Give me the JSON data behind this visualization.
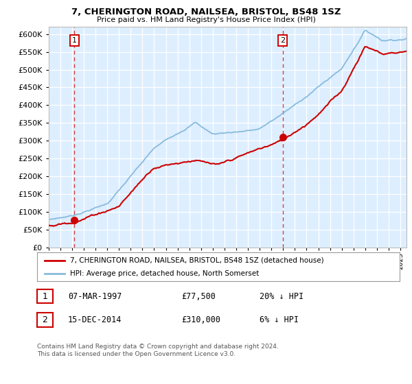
{
  "title": "7, CHERINGTON ROAD, NAILSEA, BRISTOL, BS48 1SZ",
  "subtitle": "Price paid vs. HM Land Registry's House Price Index (HPI)",
  "ylim": [
    0,
    620000
  ],
  "yticks": [
    0,
    50000,
    100000,
    150000,
    200000,
    250000,
    300000,
    350000,
    400000,
    450000,
    500000,
    550000,
    600000
  ],
  "sale1_date": 1997.19,
  "sale1_price": 77500,
  "sale1_label": "1",
  "sale2_date": 2014.96,
  "sale2_price": 310000,
  "sale2_label": "2",
  "legend_line1": "7, CHERINGTON ROAD, NAILSEA, BRISTOL, BS48 1SZ (detached house)",
  "legend_line2": "HPI: Average price, detached house, North Somerset",
  "table_row1": [
    "1",
    "07-MAR-1997",
    "£77,500",
    "20% ↓ HPI"
  ],
  "table_row2": [
    "2",
    "15-DEC-2014",
    "£310,000",
    "6% ↓ HPI"
  ],
  "footer": "Contains HM Land Registry data © Crown copyright and database right 2024.\nThis data is licensed under the Open Government Licence v3.0.",
  "sold_line_color": "#cc0000",
  "hpi_line_color": "#88bbdd",
  "background_color": "#ddeeff",
  "plot_bg_color": "#ddeeff",
  "marker_color": "#cc0000",
  "vline_color": "#cc0000",
  "grid_color": "#ffffff",
  "spine_color": "#bbbbbb"
}
